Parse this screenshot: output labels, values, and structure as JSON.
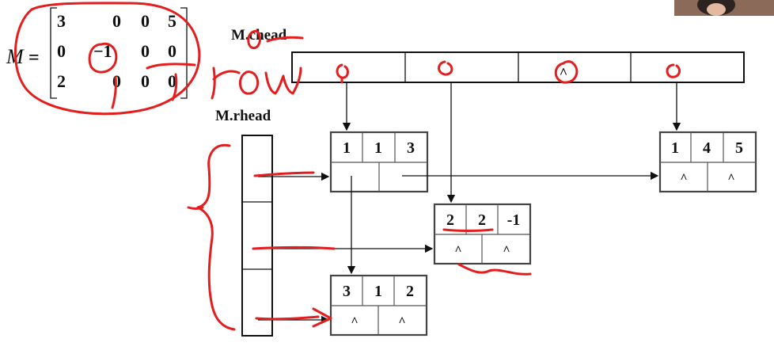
{
  "matrix": {
    "name": "M",
    "equals": "=",
    "rows": [
      [
        "3",
        "0",
        "0",
        "5"
      ],
      [
        "0",
        "−1",
        "0",
        "0"
      ],
      [
        "2",
        "0",
        "0",
        "0"
      ]
    ]
  },
  "chead_label": "M.chead",
  "rhead_label": "M.rhead",
  "nodes": [
    {
      "row": "1",
      "col": "1",
      "val": "3",
      "down": "",
      "right": ""
    },
    {
      "row": "1",
      "col": "4",
      "val": "5",
      "down": "^",
      "right": "^"
    },
    {
      "row": "2",
      "col": "2",
      "val": "-1",
      "down": "^",
      "right": "^"
    },
    {
      "row": "3",
      "col": "1",
      "val": "2",
      "down": "^",
      "right": "^"
    }
  ],
  "handwriting": {
    "row_word": "row",
    "null_marks": [
      "o",
      "o",
      "^",
      "o"
    ]
  },
  "colors": {
    "ink": "#e41e1e",
    "stroke": "#111111"
  }
}
